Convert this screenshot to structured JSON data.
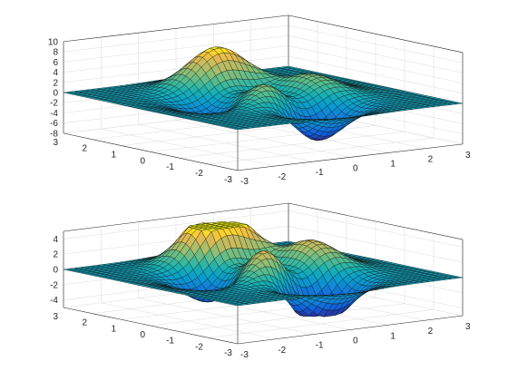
{
  "chart_data": [
    {
      "type": "surface",
      "function": "peaks",
      "x_range": [
        -3,
        3
      ],
      "y_range": [
        -3,
        3
      ],
      "grid_points": 41,
      "zlim": [
        -8,
        10
      ],
      "clip_z": null,
      "colormap": "parula",
      "grid": true,
      "z_ticks": [
        "10",
        "8",
        "6",
        "4",
        "2",
        "0",
        "-2",
        "-4",
        "-6",
        "-8"
      ],
      "x_ticks": [
        "-3",
        "-2",
        "-1",
        "0",
        "1",
        "2",
        "3"
      ],
      "y_ticks": [
        "-3",
        "-2",
        "-1",
        "0",
        "1",
        "2",
        "3"
      ]
    },
    {
      "type": "surface",
      "function": "peaks",
      "x_range": [
        -3,
        3
      ],
      "y_range": [
        -3,
        3
      ],
      "grid_points": 41,
      "zlim": [
        -5,
        5
      ],
      "clip_z": [
        -4,
        5
      ],
      "colormap": "parula",
      "grid": true,
      "z_ticks": [
        "4",
        "2",
        "0",
        "-2",
        "-4"
      ],
      "x_ticks": [
        "-3",
        "-2",
        "-1",
        "0",
        "1",
        "2",
        "3"
      ],
      "y_ticks": [
        "-3",
        "-2",
        "-1",
        "0",
        "1",
        "2",
        "3"
      ]
    }
  ]
}
